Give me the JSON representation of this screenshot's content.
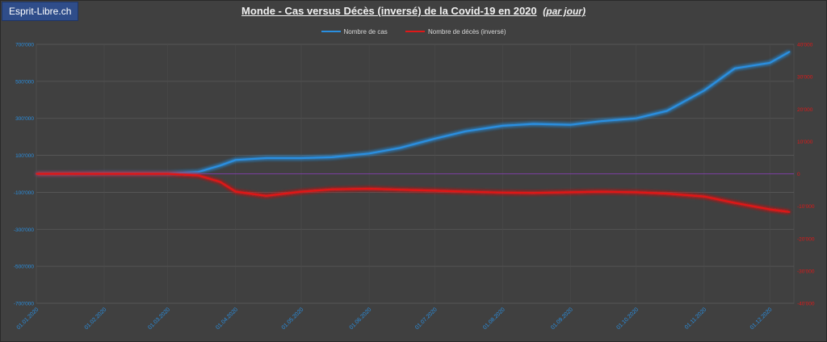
{
  "badge": "Esprit-Libre.ch",
  "chart_data": {
    "type": "line",
    "title": "Monde - Cas versus Décès (inversé) de la Covid-19 en 2020",
    "subtitle": "(par jour)",
    "legend_position": "top-center",
    "grid": true,
    "colors": {
      "cases": "#2a8fe0",
      "deaths": "#e01818",
      "zero_line": "#7b3fa0"
    },
    "x_range": [
      "01.01.2020",
      "12.12.2020"
    ],
    "x_ticks": [
      "01.01.2020",
      "01.02.2020",
      "01.03.2020",
      "01.04.2020",
      "01.05.2020",
      "01.06.2020",
      "01.07.2020",
      "01.08.2020",
      "01.09.2020",
      "01.10.2020",
      "01.11.2020",
      "01.12.2020"
    ],
    "y_left": {
      "ylim": [
        -700000,
        700000
      ],
      "ticks": [
        "700'000",
        "500'000",
        "300'000",
        "100'000",
        "-100'000",
        "-300'000",
        "-500'000",
        "-700'000"
      ]
    },
    "y_right": {
      "ylim": [
        -40000,
        40000
      ],
      "ticks": [
        "40'000",
        "30'000",
        "20'000",
        "10'000",
        "0",
        "-10'000",
        "-20'000",
        "-30'000",
        "-40'000"
      ]
    },
    "series": [
      {
        "name": "Nombre de cas",
        "axis": "left",
        "x": [
          "01.01.2020",
          "15.01.2020",
          "01.02.2020",
          "15.02.2020",
          "01.03.2020",
          "15.03.2020",
          "25.03.2020",
          "01.04.2020",
          "15.04.2020",
          "01.05.2020",
          "15.05.2020",
          "01.06.2020",
          "15.06.2020",
          "01.07.2020",
          "15.07.2020",
          "01.08.2020",
          "15.08.2020",
          "01.09.2020",
          "15.09.2020",
          "01.10.2020",
          "15.10.2020",
          "01.11.2020",
          "15.11.2020",
          "01.12.2020",
          "10.12.2020"
        ],
        "values": [
          0,
          0,
          2000,
          2000,
          2000,
          10000,
          45000,
          75000,
          85000,
          85000,
          90000,
          110000,
          140000,
          190000,
          230000,
          260000,
          270000,
          265000,
          285000,
          300000,
          340000,
          450000,
          570000,
          600000,
          660000
        ]
      },
      {
        "name": "Nombre de décès (inversé)",
        "axis": "right",
        "x": [
          "01.01.2020",
          "15.01.2020",
          "01.02.2020",
          "15.02.2020",
          "01.03.2020",
          "15.03.2020",
          "25.03.2020",
          "01.04.2020",
          "15.04.2020",
          "01.05.2020",
          "15.05.2020",
          "01.06.2020",
          "15.06.2020",
          "01.07.2020",
          "15.07.2020",
          "01.08.2020",
          "15.08.2020",
          "01.09.2020",
          "15.09.2020",
          "01.10.2020",
          "15.10.2020",
          "01.11.2020",
          "15.11.2020",
          "01.12.2020",
          "10.12.2020"
        ],
        "values": [
          0,
          0,
          0,
          0,
          0,
          -500,
          -2500,
          -5500,
          -6800,
          -5500,
          -4800,
          -4600,
          -4900,
          -5200,
          -5500,
          -5800,
          -5900,
          -5700,
          -5500,
          -5700,
          -6100,
          -7000,
          -9000,
          -11000,
          -11800
        ]
      }
    ]
  }
}
